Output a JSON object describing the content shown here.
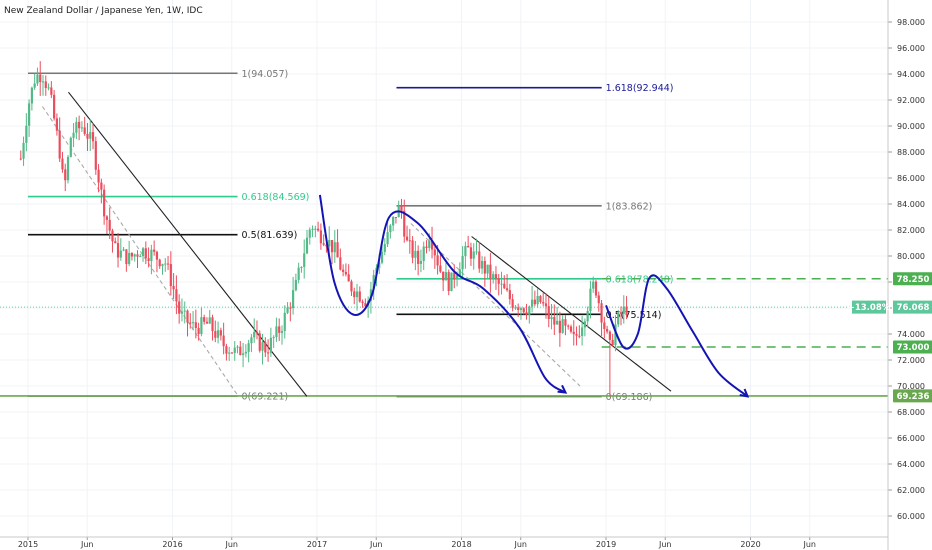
{
  "chart_data": {
    "type": "candlestick",
    "title": "New Zealand Dollar / Japanese Yen, 1W, IDC",
    "ylim": [
      59,
      99.2
    ],
    "y_ticks": [
      "98.000",
      "96.000",
      "94.000",
      "92.000",
      "90.000",
      "88.000",
      "86.000",
      "84.000",
      "82.000",
      "80.000",
      "78.000",
      "76.000",
      "74.000",
      "72.000",
      "70.000",
      "68.000",
      "66.000",
      "64.000",
      "62.000",
      "60.000"
    ],
    "x_range": [
      2014.95,
      2020.95
    ],
    "x_ticks": [
      {
        "label": "2015",
        "x": 2015.0
      },
      {
        "label": "Jun",
        "x": 2015.41
      },
      {
        "label": "2016",
        "x": 2016.0
      },
      {
        "label": "Jun",
        "x": 2016.41
      },
      {
        "label": "2017",
        "x": 2017.0
      },
      {
        "label": "Jun",
        "x": 2017.41
      },
      {
        "label": "2018",
        "x": 2018.0
      },
      {
        "label": "Jun",
        "x": 2018.41
      },
      {
        "label": "2019",
        "x": 2019.0
      },
      {
        "label": "Jun",
        "x": 2019.41
      },
      {
        "label": "2020",
        "x": 2020.0
      },
      {
        "label": "Jun",
        "x": 2020.41
      }
    ],
    "price_path": [
      [
        2014.95,
        87.5
      ],
      [
        2015.0,
        91.5
      ],
      [
        2015.05,
        93.8
      ],
      [
        2015.1,
        94.05
      ],
      [
        2015.15,
        92.5
      ],
      [
        2015.22,
        88.0
      ],
      [
        2015.25,
        85.0
      ],
      [
        2015.3,
        89.5
      ],
      [
        2015.38,
        90.0
      ],
      [
        2015.45,
        88.5
      ],
      [
        2015.52,
        84.0
      ],
      [
        2015.6,
        80.5
      ],
      [
        2015.7,
        79.8
      ],
      [
        2015.78,
        80.5
      ],
      [
        2015.85,
        80.2
      ],
      [
        2015.95,
        79.5
      ],
      [
        2016.0,
        77.8
      ],
      [
        2016.05,
        75.5
      ],
      [
        2016.15,
        74.5
      ],
      [
        2016.25,
        74.8
      ],
      [
        2016.35,
        73.2
      ],
      [
        2016.45,
        72.5
      ],
      [
        2016.55,
        73.8
      ],
      [
        2016.65,
        72.8
      ],
      [
        2016.75,
        74.5
      ],
      [
        2016.85,
        77.5
      ],
      [
        2016.92,
        80.8
      ],
      [
        2016.96,
        82.5
      ],
      [
        2017.0,
        81.8
      ],
      [
        2017.05,
        81.5
      ],
      [
        2017.12,
        80.5
      ],
      [
        2017.2,
        78.0
      ],
      [
        2017.28,
        77.2
      ],
      [
        2017.35,
        76.5
      ],
      [
        2017.42,
        79.5
      ],
      [
        2017.5,
        81.8
      ],
      [
        2017.55,
        83.4
      ],
      [
        2017.58,
        83.8
      ],
      [
        2017.62,
        81.0
      ],
      [
        2017.7,
        79.5
      ],
      [
        2017.78,
        81.8
      ],
      [
        2017.85,
        79.0
      ],
      [
        2017.92,
        77.8
      ],
      [
        2018.0,
        79.8
      ],
      [
        2018.05,
        80.5
      ],
      [
        2018.12,
        79.5
      ],
      [
        2018.2,
        78.5
      ],
      [
        2018.28,
        77.5
      ],
      [
        2018.35,
        76.5
      ],
      [
        2018.45,
        76.0
      ],
      [
        2018.55,
        76.5
      ],
      [
        2018.62,
        75.0
      ],
      [
        2018.7,
        74.5
      ],
      [
        2018.78,
        73.5
      ],
      [
        2018.82,
        74.5
      ],
      [
        2018.88,
        76.5
      ],
      [
        2018.92,
        78.0
      ],
      [
        2018.96,
        76.0
      ],
      [
        2019.0,
        74.0
      ],
      [
        2019.03,
        72.8
      ],
      [
        2019.06,
        74.5
      ],
      [
        2019.1,
        75.5
      ],
      [
        2019.15,
        76.068
      ]
    ],
    "min_spike": {
      "x": 2019.02,
      "low": 69.186
    },
    "current_price": {
      "value": 76.068,
      "change_label": "−13.08%",
      "value_label": "76.068"
    },
    "fib_sets": [
      {
        "x1": 2015.0,
        "x2": 2016.45,
        "levels": [
          {
            "ratio_label": "1(94.057)",
            "value": 94.057,
            "color": "#777777"
          },
          {
            "ratio_label": "0.618(84.569)",
            "value": 84.569,
            "color": "#2ecc8b"
          },
          {
            "ratio_label": "0.5(81.639)",
            "value": 81.639,
            "color": "#111111"
          },
          {
            "ratio_label": "0(69.221)",
            "value": 69.221,
            "color": "#777777"
          }
        ]
      },
      {
        "x1": 2017.55,
        "x2": 2018.97,
        "levels": [
          {
            "ratio_label": "1.618(92.944)",
            "value": 92.944,
            "color": "#1a1a99"
          },
          {
            "ratio_label": "1(83.862)",
            "value": 83.862,
            "color": "#777777"
          },
          {
            "ratio_label": "0.618(78.248)",
            "value": 78.248,
            "color": "#2ecc8b"
          },
          {
            "ratio_label": "0.5(75.514)",
            "value": 75.514,
            "color": "#111111"
          },
          {
            "ratio_label": "0(69.186)",
            "value": 69.186,
            "color": "#777777"
          }
        ]
      }
    ],
    "horizontal_levels": [
      {
        "value": 78.25,
        "label": "78.250",
        "color": "#4caf50",
        "style": "dashed"
      },
      {
        "value": 73.0,
        "label": "73.000",
        "color": "#4caf50",
        "style": "dashed"
      },
      {
        "value": 69.236,
        "label": "69.236",
        "color": "#6aa84f",
        "style": "solid"
      }
    ],
    "trendlines": [
      {
        "x1": 2015.28,
        "y1": 92.6,
        "x2": 2016.93,
        "y2": 69.2,
        "color": "#222222"
      },
      {
        "x1": 2018.07,
        "y1": 81.5,
        "x2": 2019.45,
        "y2": 69.6,
        "color": "#222222"
      },
      {
        "x1": 2015.1,
        "y1": 91.5,
        "x2": 2016.45,
        "y2": 69.3,
        "color": "#aaaaaa",
        "dashed": true
      },
      {
        "x1": 2017.65,
        "y1": 82.5,
        "x2": 2018.82,
        "y2": 70.0,
        "color": "#aaaaaa",
        "dashed": true
      }
    ],
    "projection_paths": [
      {
        "points": [
          [
            2017.02,
            84.7
          ],
          [
            2017.12,
            78.0
          ],
          [
            2017.25,
            75.5
          ],
          [
            2017.38,
            77.0
          ],
          [
            2017.5,
            83.0
          ],
          [
            2017.7,
            82.5
          ],
          [
            2017.95,
            78.8
          ],
          [
            2018.15,
            77.5
          ],
          [
            2018.4,
            74.5
          ],
          [
            2018.58,
            70.6
          ],
          [
            2018.72,
            69.5
          ]
        ],
        "color": "#1414b4",
        "arrow_end": true
      },
      {
        "points": [
          [
            2019.0,
            76.2
          ],
          [
            2019.12,
            73.0
          ],
          [
            2019.22,
            74.0
          ],
          [
            2019.3,
            78.3
          ],
          [
            2019.42,
            77.5
          ],
          [
            2019.6,
            74.2
          ],
          [
            2019.78,
            71.0
          ],
          [
            2019.98,
            69.2
          ]
        ],
        "color": "#1414b4",
        "arrow_end": true
      }
    ]
  }
}
